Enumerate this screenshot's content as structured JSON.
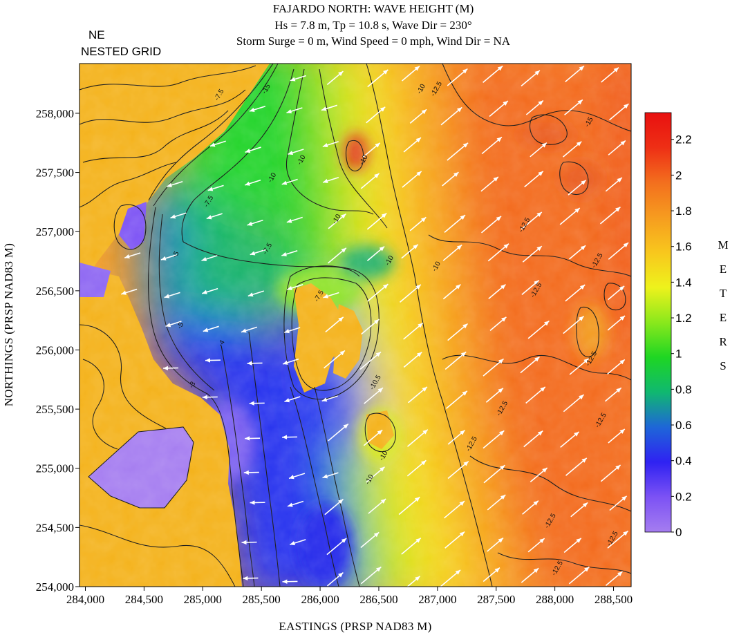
{
  "chart_data": {
    "type": "heatmap",
    "title": "FAJARDO NORTH: WAVE HEIGHT (M)",
    "subtitle_lines": [
      "Hs = 7.8 m, Tp = 10.8 s, Wave Dir = 230°",
      "Storm Surge = 0 m, Wind Speed = 0 mph, Wind Dir = NA"
    ],
    "grid_label_lines": [
      "NE",
      "NESTED GRID"
    ],
    "xlabel": "EASTINGS (PRSP NAD83 M)",
    "ylabel": "NORTHINGS (PRSP NAD83 M)",
    "xlim": [
      283950,
      288650
    ],
    "ylim": [
      254000,
      258420
    ],
    "x_ticks": [
      284000,
      284500,
      285000,
      285500,
      286000,
      286500,
      287000,
      287500,
      288000,
      288500
    ],
    "x_tick_labels": [
      "284,000",
      "284,500",
      "285,000",
      "285,500",
      "286,000",
      "286,500",
      "287,000",
      "287,500",
      "288,000",
      "288,500"
    ],
    "y_ticks": [
      254000,
      254500,
      255000,
      255500,
      256000,
      256500,
      257000,
      257500,
      258000
    ],
    "y_tick_labels": [
      "254,000",
      "254,500",
      "255,000",
      "255,500",
      "256,000",
      "256,500",
      "257,000",
      "257,500",
      "258,000"
    ],
    "colorbar": {
      "units_label": [
        "M",
        "E",
        "T",
        "E",
        "R",
        "S"
      ],
      "range": [
        0,
        2.35
      ],
      "ticks": [
        0,
        0.2,
        0.4,
        0.6,
        0.8,
        1,
        1.2,
        1.4,
        1.6,
        1.8,
        2,
        2.2
      ],
      "tick_labels": [
        "0",
        "0.2",
        "0.4",
        "0.6",
        "0.8",
        "1",
        "1.2",
        "1.4",
        "1.6",
        "1.8",
        "2",
        "2.2"
      ],
      "colors": [
        "#a57df0",
        "#7c52f4",
        "#2f22f2",
        "#1e66d8",
        "#10b870",
        "#1ed623",
        "#8ae81c",
        "#eef21c",
        "#f8c71d",
        "#f69c1f",
        "#f36f1e",
        "#ee2f15",
        "#e81010"
      ]
    },
    "land_color": "#f4b21a",
    "contour_labels": [
      {
        "text": "-7.5",
        "x": 285150,
        "y": 258150
      },
      {
        "text": "-15",
        "x": 285550,
        "y": 258200
      },
      {
        "text": "-10",
        "x": 286870,
        "y": 258200
      },
      {
        "text": "-12.5",
        "x": 287000,
        "y": 258200
      },
      {
        "text": "-15",
        "x": 288300,
        "y": 257920
      },
      {
        "text": "-10",
        "x": 285850,
        "y": 257600
      },
      {
        "text": "-10",
        "x": 285600,
        "y": 257450
      },
      {
        "text": "-10",
        "x": 286380,
        "y": 257600
      },
      {
        "text": "-7.5",
        "x": 285060,
        "y": 257250
      },
      {
        "text": "-10",
        "x": 286150,
        "y": 257100
      },
      {
        "text": "-12.5",
        "x": 287750,
        "y": 257050
      },
      {
        "text": "-5",
        "x": 284780,
        "y": 256800
      },
      {
        "text": "-7.5",
        "x": 285560,
        "y": 256850
      },
      {
        "text": "-10",
        "x": 286600,
        "y": 256750
      },
      {
        "text": "-10",
        "x": 287000,
        "y": 256700
      },
      {
        "text": "-12.5",
        "x": 288370,
        "y": 256750
      },
      {
        "text": "-12.5",
        "x": 287850,
        "y": 256500
      },
      {
        "text": "-7.5",
        "x": 286000,
        "y": 256450
      },
      {
        "text": "-5",
        "x": 284820,
        "y": 256200
      },
      {
        "text": "-4",
        "x": 285170,
        "y": 256050
      },
      {
        "text": "-12.5",
        "x": 288320,
        "y": 255920
      },
      {
        "text": "-3",
        "x": 284920,
        "y": 255700
      },
      {
        "text": "-10.5",
        "x": 286480,
        "y": 255720
      },
      {
        "text": "-12.5",
        "x": 287560,
        "y": 255500
      },
      {
        "text": "-12.5",
        "x": 288400,
        "y": 255400
      },
      {
        "text": "-12.5",
        "x": 287300,
        "y": 255200
      },
      {
        "text": "-10",
        "x": 286550,
        "y": 255100
      },
      {
        "text": "-12.5",
        "x": 287970,
        "y": 254550
      },
      {
        "text": "-12.5",
        "x": 288500,
        "y": 254400
      },
      {
        "text": "-10",
        "x": 286430,
        "y": 254900
      },
      {
        "text": "-12.5",
        "x": 288030,
        "y": 254150
      }
    ],
    "vector_direction_deg": 230
  }
}
